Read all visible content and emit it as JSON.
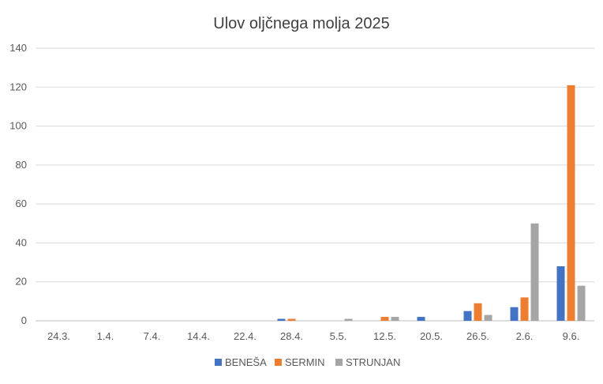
{
  "chart_data": {
    "type": "bar",
    "title": "Ulov oljčnega molja 2025",
    "xlabel": "",
    "ylabel": "",
    "ylim": [
      0,
      140
    ],
    "yticks": [
      0,
      20,
      40,
      60,
      80,
      100,
      120,
      140
    ],
    "grid": true,
    "legend_position": "bottom",
    "categories": [
      "24.3.",
      "1.4.",
      "7.4.",
      "14.4.",
      "22.4.",
      "28.4.",
      "5.5.",
      "12.5.",
      "20.5.",
      "26.5.",
      "2.6.",
      "9.6."
    ],
    "series": [
      {
        "name": "BENEŠA",
        "color": "#4472C4",
        "values": [
          0,
          0,
          0,
          0,
          0,
          1,
          0,
          0,
          2,
          5,
          7,
          28
        ]
      },
      {
        "name": "SERMIN",
        "color": "#ED7D31",
        "values": [
          0,
          0,
          0,
          0,
          0,
          1,
          0,
          2,
          0,
          9,
          12,
          121
        ]
      },
      {
        "name": "STRUNJAN",
        "color": "#A5A5A5",
        "values": [
          0,
          0,
          0,
          0,
          0,
          0,
          1,
          2,
          0,
          3,
          50,
          18
        ]
      }
    ]
  }
}
